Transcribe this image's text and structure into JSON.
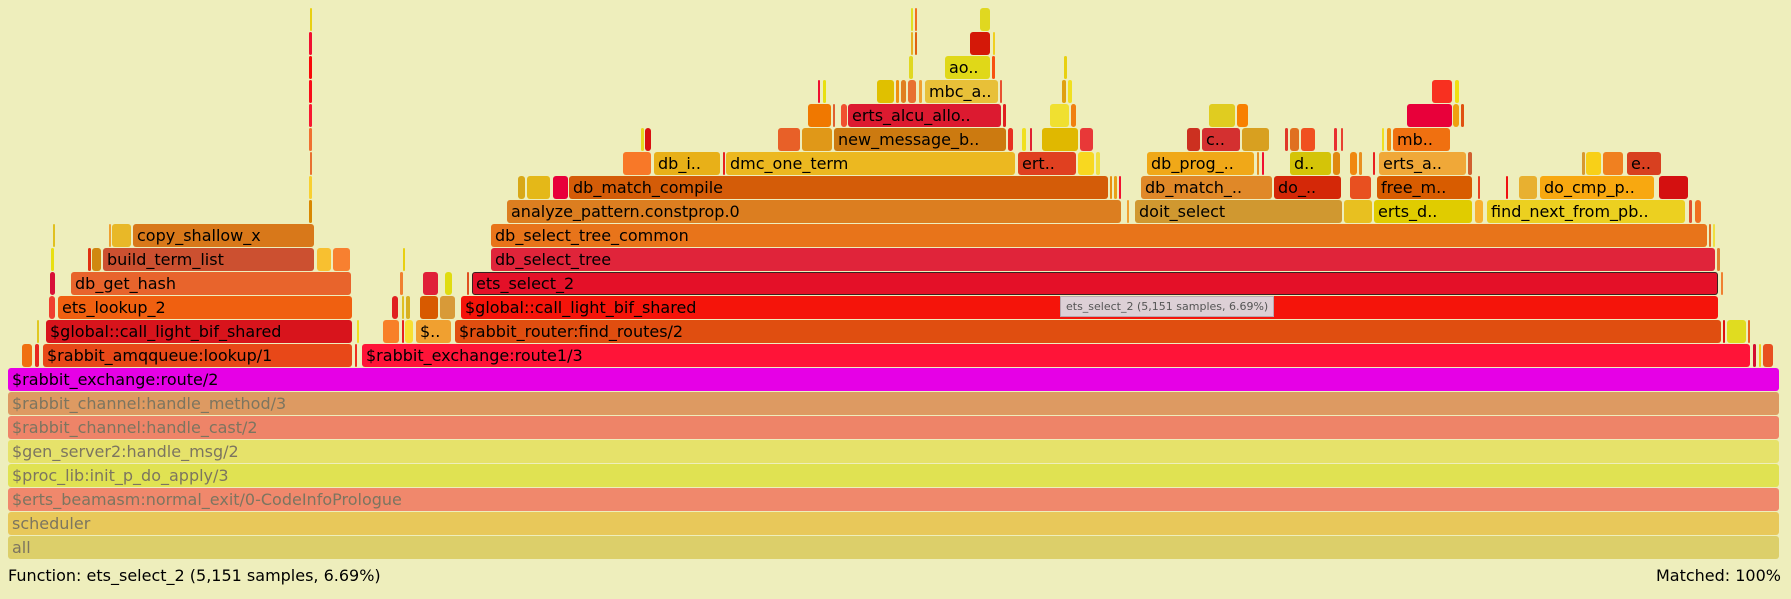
{
  "status": {
    "function_details": "Function: ets_select_2 (5,151 samples, 6.69%)",
    "matched": "Matched: 100%"
  },
  "tooltip": "ets_select_2 (5,151 samples, 6.69%)",
  "highlighted_frame": "ets_select_2",
  "frames": [
    {
      "label": "all",
      "color": "#dccf6a"
    },
    {
      "label": "scheduler",
      "color": "#e8c85a"
    },
    {
      "label": "$erts_beamasm:normal_exit/0-CodeInfoPrologue",
      "color": "#f0886c"
    },
    {
      "label": "$proc_lib:init_p_do_apply/3",
      "color": "#e0e252"
    },
    {
      "label": "$gen_server2:handle_msg/2",
      "color": "#e6e26a"
    },
    {
      "label": "$rabbit_channel:handle_cast/2",
      "color": "#ee8468"
    },
    {
      "label": "$rabbit_channel:handle_method/3",
      "color": "#dd9a62"
    },
    {
      "label": "$rabbit_exchange:route/2",
      "color": "#e600e6"
    },
    {
      "label": "",
      "color": "#f07010"
    },
    {
      "label": "",
      "color": "#e82820"
    },
    {
      "label": "$rabbit_amqqueue:lookup/1",
      "color": "#e84818"
    },
    {
      "label": "",
      "color": "#f03020"
    },
    {
      "label": "$rabbit_exchange:route1/3",
      "color": "#ff1438"
    },
    {
      "label": "",
      "color": "#d40c30"
    },
    {
      "label": "",
      "color": "#f0d020"
    },
    {
      "label": "",
      "color": "#e85020"
    },
    {
      "label": "",
      "color": "#e0c820"
    },
    {
      "label": "$global::call_light_bif_shared",
      "color": "#d8141c"
    },
    {
      "label": "",
      "color": "#f0e020"
    },
    {
      "label": "",
      "color": "#f88028"
    },
    {
      "label": "",
      "color": "#e82020"
    },
    {
      "label": "",
      "color": "#f8e030"
    },
    {
      "label": "$..",
      "color": "#f0a030"
    },
    {
      "label": "$rabbit_router:find_routes/2",
      "color": "#e04e10"
    },
    {
      "label": "",
      "color": "#e01010"
    },
    {
      "label": "",
      "color": "#e0dc20"
    },
    {
      "label": "",
      "color": "#e86020"
    },
    {
      "label": "",
      "color": "#f04030"
    },
    {
      "label": "ets_lookup_2",
      "color": "#f06010"
    },
    {
      "label": "",
      "color": "#e02020"
    },
    {
      "label": "",
      "color": "#e0c020"
    },
    {
      "label": "",
      "color": "#d8b020"
    },
    {
      "label": "",
      "color": "#d85a00"
    },
    {
      "label": "",
      "color": "#d89a38"
    },
    {
      "label": "$global::call_light_bif_shared",
      "color": "#f5140a"
    },
    {
      "label": "",
      "color": "#d81038"
    },
    {
      "label": "db_get_hash",
      "color": "#e8642c"
    },
    {
      "label": "",
      "color": "#f08030"
    },
    {
      "label": "",
      "color": "#e02038"
    },
    {
      "label": "",
      "color": "#e0dc10"
    },
    {
      "label": "",
      "color": "#e05020"
    },
    {
      "label": "ets_select_2",
      "color": "#e41028"
    },
    {
      "label": "",
      "color": "#f08030"
    },
    {
      "label": "",
      "color": "#e8e010"
    },
    {
      "label": "",
      "color": "#e03010"
    },
    {
      "label": "",
      "color": "#d08810"
    },
    {
      "label": "build_term_list",
      "color": "#cc5030"
    },
    {
      "label": "",
      "color": "#f8c030"
    },
    {
      "label": "",
      "color": "#f88030"
    },
    {
      "label": "",
      "color": "#e8d010"
    },
    {
      "label": "db_select_tree",
      "color": "#e0243a"
    },
    {
      "label": "",
      "color": "#e08030"
    },
    {
      "label": "",
      "color": "#e0c020"
    },
    {
      "label": "",
      "color": "#f0a030"
    },
    {
      "label": "",
      "color": "#e8b828"
    },
    {
      "label": "copy_shallow_x",
      "color": "#d8781a"
    },
    {
      "label": "db_select_tree_common",
      "color": "#e8741a"
    },
    {
      "label": "",
      "color": "#e07020"
    },
    {
      "label": "",
      "color": "#f0e040"
    },
    {
      "label": "",
      "color": "#d88800"
    },
    {
      "label": "analyze_pattern.constprop.0",
      "color": "#dc7e20"
    },
    {
      "label": "",
      "color": "#f0a030"
    },
    {
      "label": "doit_select",
      "color": "#d09830"
    },
    {
      "label": "",
      "color": "#e8c020"
    },
    {
      "label": "erts_d..",
      "color": "#e0cc00"
    },
    {
      "label": "",
      "color": "#f8b030"
    },
    {
      "label": "find_next_from_pb..",
      "color": "#ecd020"
    },
    {
      "label": "",
      "color": "#e05030"
    },
    {
      "label": "",
      "color": "#f07020"
    },
    {
      "label": "",
      "color": "#f8d030"
    },
    {
      "label": "",
      "color": "#d8a818"
    },
    {
      "label": "",
      "color": "#e4b818"
    },
    {
      "label": "",
      "color": "#e8003a"
    },
    {
      "label": "db_match_compile",
      "color": "#d45c08"
    },
    {
      "label": "",
      "color": "#e89010"
    },
    {
      "label": "",
      "color": "#e8a018"
    },
    {
      "label": "",
      "color": "#f01030"
    },
    {
      "label": "db_match_..",
      "color": "#e08828"
    },
    {
      "label": "do_..",
      "color": "#d42808"
    },
    {
      "label": "",
      "color": "#e85020"
    },
    {
      "label": "free_m..",
      "color": "#d85c00"
    },
    {
      "label": "",
      "color": "#e84020"
    },
    {
      "label": "",
      "color": "#f01010"
    },
    {
      "label": "",
      "color": "#e8b030"
    },
    {
      "label": "do_cmp_p..",
      "color": "#f8a810"
    },
    {
      "label": "",
      "color": "#d41010"
    },
    {
      "label": "",
      "color": "#e87030"
    },
    {
      "label": "",
      "color": "#f87828"
    },
    {
      "label": "db_i..",
      "color": "#e8b018"
    },
    {
      "label": "",
      "color": "#e82020"
    },
    {
      "label": "dmc_one_term",
      "color": "#ecb820"
    },
    {
      "label": "ert..",
      "color": "#e04020"
    },
    {
      "label": "",
      "color": "#f8d820"
    },
    {
      "label": "",
      "color": "#f0e040"
    },
    {
      "label": "db_prog_..",
      "color": "#f0a818"
    },
    {
      "label": "",
      "color": "#e89020"
    },
    {
      "label": "",
      "color": "#f01030"
    },
    {
      "label": "d..",
      "color": "#d4c408"
    },
    {
      "label": "",
      "color": "#e08810"
    },
    {
      "label": "",
      "color": "#f08810"
    },
    {
      "label": "",
      "color": "#e89020"
    },
    {
      "label": "",
      "color": "#e82020"
    },
    {
      "label": "erts_a..",
      "color": "#f0a838"
    },
    {
      "label": "",
      "color": "#d06030"
    },
    {
      "label": "",
      "color": "#d89830"
    },
    {
      "label": "",
      "color": "#f8d018"
    },
    {
      "label": "",
      "color": "#f08020"
    },
    {
      "label": "e..",
      "color": "#d84020"
    },
    {
      "label": "",
      "color": "#f07030"
    },
    {
      "label": "",
      "color": "#e8d820"
    },
    {
      "label": "",
      "color": "#d81010"
    },
    {
      "label": "",
      "color": "#e86028"
    },
    {
      "label": "",
      "color": "#e09818"
    },
    {
      "label": "new_message_b..",
      "color": "#cc7a10"
    },
    {
      "label": "",
      "color": "#e83020"
    },
    {
      "label": "",
      "color": "#f0e020"
    },
    {
      "label": "",
      "color": "#e02030"
    },
    {
      "label": "",
      "color": "#e0b800"
    },
    {
      "label": "",
      "color": "#e83838"
    },
    {
      "label": "",
      "color": "#cc3020"
    },
    {
      "label": "c..",
      "color": "#d43030"
    },
    {
      "label": "",
      "color": "#d8a020"
    },
    {
      "label": "",
      "color": "#e03828"
    },
    {
      "label": "",
      "color": "#e07020"
    },
    {
      "label": "",
      "color": "#f05020"
    },
    {
      "label": "",
      "color": "#e83030"
    },
    {
      "label": "",
      "color": "#e84030"
    },
    {
      "label": "",
      "color": "#f0e020"
    },
    {
      "label": "",
      "color": "#f09010"
    },
    {
      "label": "mb..",
      "color": "#f07010"
    },
    {
      "label": "",
      "color": "#f81830"
    },
    {
      "label": "",
      "color": "#f07800"
    },
    {
      "label": "",
      "color": "#e06030"
    },
    {
      "label": "",
      "color": "#f05030"
    },
    {
      "label": "erts_alcu_allo..",
      "color": "#dc1a30"
    },
    {
      "label": "",
      "color": "#e02020"
    },
    {
      "label": "",
      "color": "#f0e030"
    },
    {
      "label": "",
      "color": "#f08010"
    },
    {
      "label": "",
      "color": "#e0cc20"
    },
    {
      "label": "",
      "color": "#f88000"
    },
    {
      "label": "",
      "color": "#e8003a"
    },
    {
      "label": "",
      "color": "#f0a010"
    },
    {
      "label": "",
      "color": "#e05010"
    },
    {
      "label": "",
      "color": "#f80c18"
    },
    {
      "label": "",
      "color": "#f01030"
    },
    {
      "label": "",
      "color": "#e8e010"
    },
    {
      "label": "",
      "color": "#e0c000"
    },
    {
      "label": "",
      "color": "#f09010"
    },
    {
      "label": "",
      "color": "#e08020"
    },
    {
      "label": "",
      "color": "#e87030"
    },
    {
      "label": "",
      "color": "#f0a030"
    },
    {
      "label": "mbc_a..",
      "color": "#e8c038"
    },
    {
      "label": "",
      "color": "#e85030"
    },
    {
      "label": "",
      "color": "#e0a010"
    },
    {
      "label": "",
      "color": "#f0e020"
    },
    {
      "label": "",
      "color": "#f83020"
    },
    {
      "label": "",
      "color": "#f0e010"
    },
    {
      "label": "",
      "color": "#f80808"
    },
    {
      "label": "",
      "color": "#e0d820"
    },
    {
      "label": "ao..",
      "color": "#e0d818"
    },
    {
      "label": "",
      "color": "#f85010"
    },
    {
      "label": "",
      "color": "#e8d010"
    },
    {
      "label": "",
      "color": "#f01030"
    },
    {
      "label": "",
      "color": "#e8b020"
    },
    {
      "label": "",
      "color": "#e06010"
    },
    {
      "label": "",
      "color": "#d41808"
    },
    {
      "label": "",
      "color": "#f0d020"
    },
    {
      "label": "",
      "color": "#e8d010"
    },
    {
      "label": "",
      "color": "#e0e020"
    },
    {
      "label": "",
      "color": "#f07020"
    },
    {
      "label": "",
      "color": "#e0d820"
    }
  ]
}
